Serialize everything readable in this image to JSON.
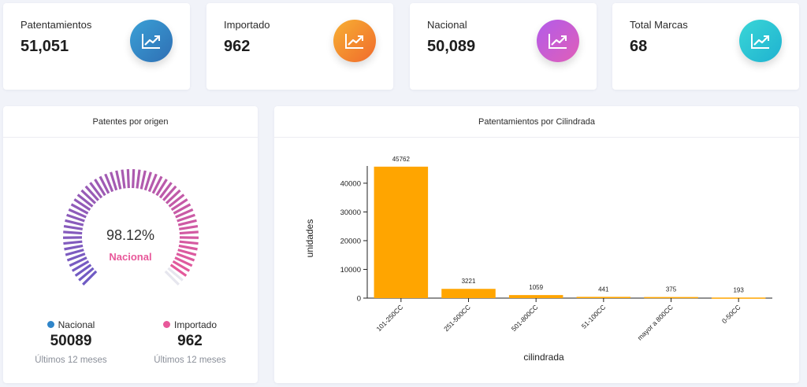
{
  "colors": {
    "nacional": "#8b5cc9",
    "importado": "#e8589a",
    "bar": "#ffa500",
    "stat_icon_1": "#3385c8",
    "stat_icon_2": "#f28d2e",
    "stat_icon_3": "#c95ed2",
    "stat_icon_4": "#2cc4d4"
  },
  "stats": [
    {
      "label": "Patentamientos",
      "value": "51,051",
      "icon": "trending-up-icon"
    },
    {
      "label": "Importado",
      "value": "962",
      "icon": "trending-up-icon"
    },
    {
      "label": "Nacional",
      "value": "50,089",
      "icon": "trending-up-icon"
    },
    {
      "label": "Total Marcas",
      "value": "68",
      "icon": "trending-up-icon"
    }
  ],
  "origin_panel": {
    "title": "Patentes por origen",
    "gauge_percent": "98.12%",
    "gauge_fraction": 0.9812,
    "gauge_label": "Nacional",
    "legend": [
      {
        "name": "Nacional",
        "value": "50089",
        "sub": "Últimos 12 meses"
      },
      {
        "name": "Importado",
        "value": "962",
        "sub": "Últimos 12 meses"
      }
    ]
  },
  "cil_panel": {
    "title": "Patentamientos por Cilindrada"
  },
  "chart_data": {
    "type": "bar",
    "categories": [
      "101-250CC",
      "251-500CC",
      "501-800CC",
      "51-100CC",
      "mayor a 800CC",
      "0-50CC"
    ],
    "values": [
      45762,
      3221,
      1059,
      441,
      375,
      193
    ],
    "xlabel": "cilindrada",
    "ylabel": "unidades",
    "ylim": [
      0,
      46000
    ],
    "yticks": [
      0,
      10000,
      20000,
      30000,
      40000
    ],
    "grid": false
  }
}
